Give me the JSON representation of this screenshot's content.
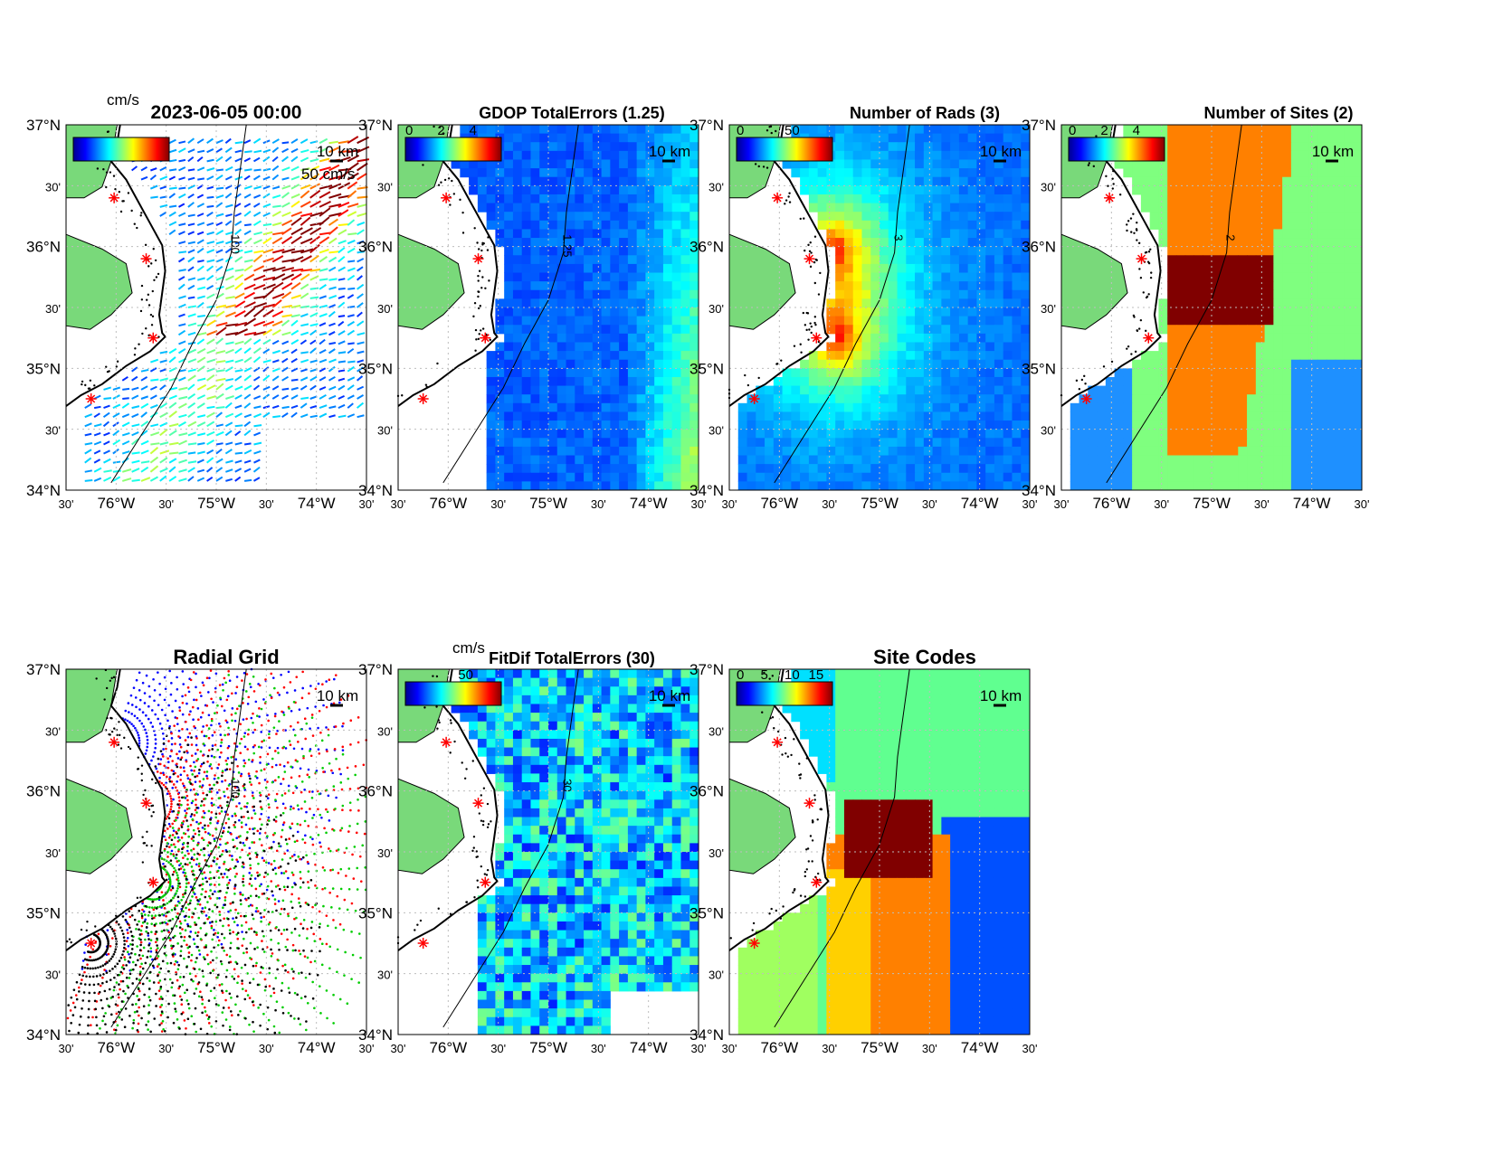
{
  "figure": {
    "timestamp": "2023-06-05 00:00",
    "top_unit": "cm/s",
    "fitdif_unit": "cm/s",
    "scale_bar_label": "10 km",
    "vector_scale_label": "50 cm/s",
    "contour_label_100": "100"
  },
  "lat_labels": [
    "37°N",
    "30'",
    "36°N",
    "30'",
    "35°N",
    "30'",
    "34°N"
  ],
  "lon_labels": [
    "30'",
    "76°W",
    "30'",
    "75°W",
    "30'",
    "74°W",
    "30'"
  ],
  "panels": [
    {
      "key": "currents",
      "title": "",
      "cb_ticks": [],
      "contour_label": "100"
    },
    {
      "key": "gdop",
      "title": "GDOP TotalErrors (1.25)",
      "cb_ticks": [
        "0",
        "2",
        "4"
      ],
      "contour_label": "1.25"
    },
    {
      "key": "rads",
      "title": "Number of Rads (3)",
      "cb_ticks": [
        "0",
        "50"
      ],
      "contour_label": "3"
    },
    {
      "key": "sites",
      "title": "Number of Sites (2)",
      "cb_ticks": [
        "0",
        "2",
        "4"
      ],
      "contour_label": "2"
    },
    {
      "key": "radial",
      "title": "Radial Grid",
      "cb_ticks": [],
      "contour_label": "100"
    },
    {
      "key": "fitdif",
      "title": "FitDif TotalErrors (30)",
      "cb_ticks": [
        "50"
      ],
      "contour_label": "30"
    },
    {
      "key": "codes",
      "title": "Site Codes",
      "cb_ticks": [
        "0",
        "5",
        "10",
        "15"
      ],
      "contour_label": ""
    }
  ],
  "map_extent": {
    "lon_min": -76.5,
    "lon_max": -73.5,
    "lat_min": 34.0,
    "lat_max": 37.0
  },
  "radar_sites": [
    {
      "lon": -76.02,
      "lat": 36.4
    },
    {
      "lon": -75.7,
      "lat": 35.9
    },
    {
      "lon": -75.63,
      "lat": 35.25
    },
    {
      "lon": -76.25,
      "lat": 34.75
    }
  ],
  "colors": {
    "land": "#79d97a",
    "coast": "#000000",
    "site_marker": "#ff0000",
    "gridline": "#bdbdbd",
    "jet_low": "#00008f",
    "jet_high": "#800000",
    "radial_site1": "#0000ff",
    "radial_site2": "#ff0000",
    "radial_site3": "#00cc00",
    "radial_site4": "#000000"
  }
}
